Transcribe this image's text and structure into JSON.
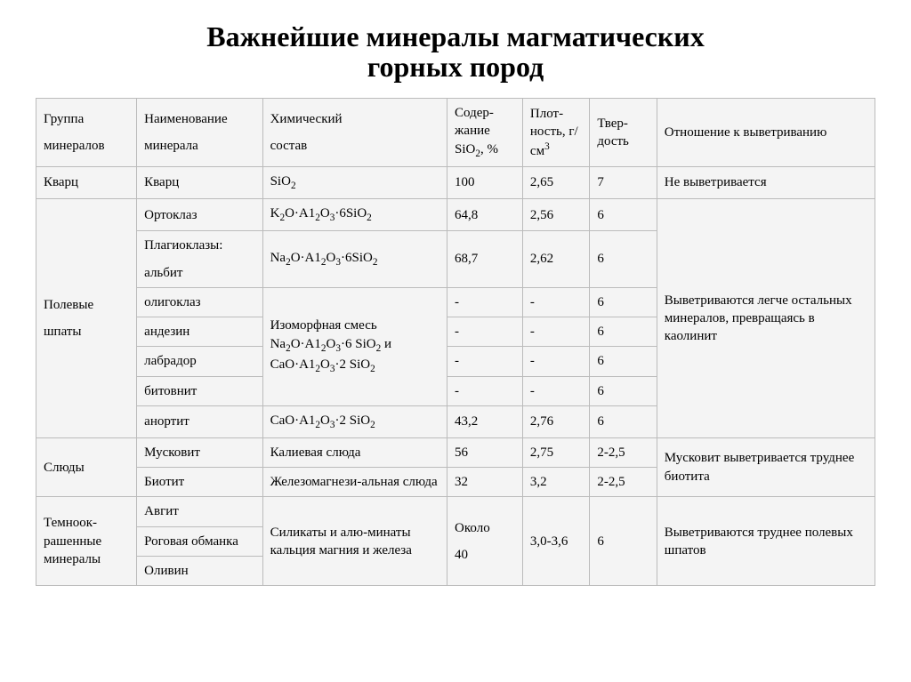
{
  "title_line1": "Важнейшие минералы магматических",
  "title_line2": "горных пород",
  "headers": {
    "col1_l1": "Группа",
    "col1_l2": "минералов",
    "col2_l1": "Наименование",
    "col2_l2": "минерала",
    "col3_l1": "Химический",
    "col3_l2": "состав",
    "col4": "Содер-жание SiO₂, %",
    "col5": "Плот-ность, г/см³",
    "col6": "Твер-дость",
    "col7": "Отношение к выветриванию"
  },
  "rows": {
    "quartz_group": "Кварц",
    "quartz_name": "Кварц",
    "quartz_chem": "SiO₂",
    "quartz_sio2": "100",
    "quartz_dens": "2,65",
    "quartz_hard": "7",
    "quartz_weath": "Не выветривается",
    "feldspar_group_l1": "Полевые",
    "feldspar_group_l2": "шпаты",
    "orthoclase_name": "Ортоклаз",
    "orthoclase_chem": "K₂O·A1₂O₃·6SiO₂",
    "orthoclase_sio2": "64,8",
    "orthoclase_dens": "2,56",
    "orthoclase_hard": "6",
    "albite_name_l1": "Плагиоклазы:",
    "albite_name_l2": "альбит",
    "albite_chem": "Na₂O·A1₂O₃·6SiO₂",
    "albite_sio2": "68,7",
    "albite_dens": "2,62",
    "albite_hard": "6",
    "oligoclase_name": "олигоклаз",
    "andesine_name": "андезин",
    "labrador_name": "лабрадор",
    "bytownite_name": "битовнит",
    "isomorphic_mix": "Изоморфная смесь Na₂O·A1₂O₃·6 SiO₂ и CaO·A1₂O₃·2 SiO₂",
    "dash": "-",
    "six": "6",
    "anorthite_name": "анортит",
    "anorthite_chem": "CaO·A1₂O₃·2 SiO₂",
    "anorthite_sio2": "43,2",
    "anorthite_dens": "2,76",
    "anorthite_hard": "6",
    "feldspar_weath": "Выветриваются легче остальных минералов, превращаясь в каолинит",
    "mica_group": "Слюды",
    "muscovite_name": "Мусковит",
    "muscovite_chem": "Калиевая слюда",
    "muscovite_sio2": "56",
    "muscovite_dens": "2,75",
    "muscovite_hard": "2-2,5",
    "biotite_name": "Биотит",
    "biotite_chem": "Железомагнези-альная слюда",
    "biotite_sio2": "32",
    "biotite_dens": "3,2",
    "biotite_hard": "2-2,5",
    "mica_weath": "Мусковит выветривается труднее биотита",
    "dark_group": "Темноок-рашенные минералы",
    "augite_name": "Авгит",
    "hornblende_name": "Роговая обманка",
    "olivine_name": "Оливин",
    "dark_chem": "Силикаты и алю-минаты кальция магния и железа",
    "dark_sio2_l1": "Около",
    "dark_sio2_l2": "40",
    "dark_dens": "3,0-3,6",
    "dark_hard": "6",
    "dark_weath": "Выветриваются труднее полевых шпатов"
  }
}
